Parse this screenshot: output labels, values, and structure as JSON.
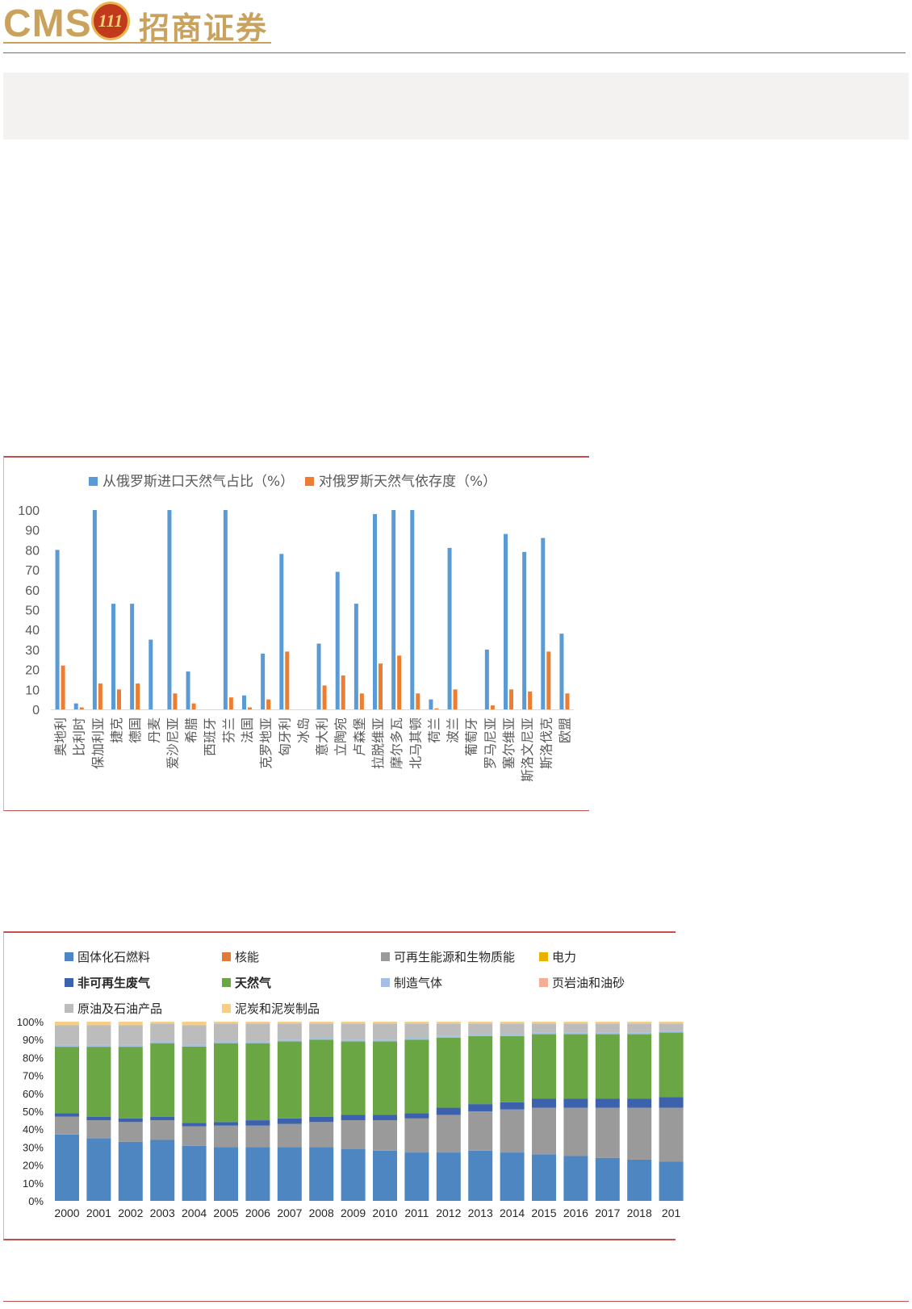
{
  "header": {
    "logo_text": "CMS",
    "logo_badge": "111",
    "logo_cn": "招商证券",
    "brand_color": "#c9a25e",
    "rule_color": "#c0504d",
    "band_color": "#f4f2f1"
  },
  "chart_data": [
    {
      "type": "bar",
      "title": "",
      "ylim": [
        0,
        100
      ],
      "yticks": [
        "0",
        "10",
        "20",
        "30",
        "40",
        "50",
        "60",
        "70",
        "80",
        "90",
        "100"
      ],
      "legend_position": "top",
      "categories": [
        "奥地利",
        "比利时",
        "保加利亚",
        "捷克",
        "德国",
        "丹麦",
        "爱沙尼亚",
        "希腊",
        "西班牙",
        "芬兰",
        "法国",
        "克罗地亚",
        "匈牙利",
        "冰岛",
        "意大利",
        "立陶宛",
        "卢森堡",
        "拉脱维亚",
        "摩尔多瓦",
        "北马其顿",
        "荷兰",
        "波兰",
        "葡萄牙",
        "罗马尼亚",
        "塞尔维亚",
        "斯洛文尼亚",
        "斯洛伐克",
        "欧盟"
      ],
      "series": [
        {
          "name": "从俄罗斯进口天然气占比（%）",
          "color": "#5b9bd5",
          "values": [
            80,
            3,
            100,
            53,
            53,
            35,
            100,
            19,
            0,
            100,
            7,
            28,
            78,
            0,
            33,
            69,
            53,
            98,
            100,
            100,
            5,
            81,
            0,
            30,
            88,
            79,
            86,
            38
          ]
        },
        {
          "name": "对俄罗斯天然气依存度（%）",
          "color": "#ed7d31",
          "values": [
            22,
            1,
            13,
            10,
            13,
            0,
            8,
            3,
            0,
            6,
            1,
            5,
            29,
            0,
            12,
            17,
            8,
            23,
            27,
            8,
            0.5,
            10,
            0,
            2,
            10,
            9,
            29,
            8
          ]
        }
      ]
    },
    {
      "type": "bar",
      "stacked": true,
      "title": "",
      "ylim": [
        0,
        100
      ],
      "yticks": [
        "0%",
        "10%",
        "20%",
        "30%",
        "40%",
        "50%",
        "60%",
        "70%",
        "80%",
        "90%",
        "100%"
      ],
      "legend_position": "top",
      "categories": [
        "2000",
        "2001",
        "2002",
        "2003",
        "2004",
        "2005",
        "2006",
        "2007",
        "2008",
        "2009",
        "2010",
        "2011",
        "2012",
        "2013",
        "2014",
        "2015",
        "2016",
        "2017",
        "2018",
        "201"
      ],
      "series": [
        {
          "name": "固体化石燃料",
          "color": "#4e86c2",
          "values": [
            37,
            35,
            33,
            34,
            31,
            30,
            30,
            30,
            30,
            29,
            28,
            27,
            27,
            28,
            27,
            26,
            25,
            24,
            23,
            22
          ]
        },
        {
          "name": "核能",
          "color": "#e07b39",
          "values": [
            0,
            0,
            0,
            0,
            0,
            0,
            0,
            0,
            0,
            0,
            0,
            0,
            0,
            0,
            0,
            0,
            0,
            0,
            0,
            0
          ]
        },
        {
          "name": "可再生能源和生物质能",
          "color": "#9a9a9a",
          "values": [
            10,
            10,
            11,
            11,
            11,
            12,
            12,
            13,
            14,
            16,
            17,
            19,
            21,
            22,
            24,
            26,
            27,
            28,
            29,
            30
          ]
        },
        {
          "name": "电力",
          "color": "#e8b100",
          "values": [
            0,
            0,
            0,
            0,
            0,
            0,
            0,
            0,
            0,
            0,
            0,
            0,
            0,
            0,
            0,
            0,
            0,
            0,
            0,
            0
          ]
        },
        {
          "name": "非可再生废气",
          "color": "#3c62ad",
          "values": [
            2,
            2,
            2,
            2,
            2,
            2,
            3,
            3,
            3,
            3,
            3,
            3,
            4,
            4,
            4,
            5,
            5,
            5,
            5,
            6
          ]
        },
        {
          "name": "天然气",
          "color": "#6aa744",
          "values": [
            37,
            39,
            40,
            41,
            43,
            44,
            43,
            43,
            43,
            41,
            41,
            41,
            39,
            38,
            37,
            36,
            36,
            36,
            36,
            36
          ]
        },
        {
          "name": "制造气体",
          "color": "#a5bfe4",
          "values": [
            1,
            1,
            1,
            1,
            1,
            1,
            1,
            1,
            1,
            1,
            1,
            1,
            1,
            1,
            1,
            1,
            1,
            1,
            1,
            1
          ]
        },
        {
          "name": "页岩油和油砂",
          "color": "#f4ad96",
          "values": [
            0,
            0,
            0,
            0,
            0,
            0,
            0,
            0,
            0,
            0,
            0,
            0,
            0,
            0,
            0,
            0,
            0,
            0,
            0,
            0
          ]
        },
        {
          "name": "原油及石油产品",
          "color": "#bcbcbc",
          "values": [
            11,
            11,
            11,
            10,
            11,
            10,
            10,
            9,
            8,
            9,
            9,
            8,
            7,
            6,
            6,
            5,
            5,
            5,
            5,
            4
          ]
        },
        {
          "name": "泥炭和泥炭制品",
          "color": "#f6cf85",
          "values": [
            2,
            2,
            2,
            1,
            2,
            1,
            1,
            1,
            1,
            1,
            1,
            1,
            1,
            1,
            1,
            1,
            1,
            1,
            1,
            1
          ]
        }
      ]
    }
  ]
}
